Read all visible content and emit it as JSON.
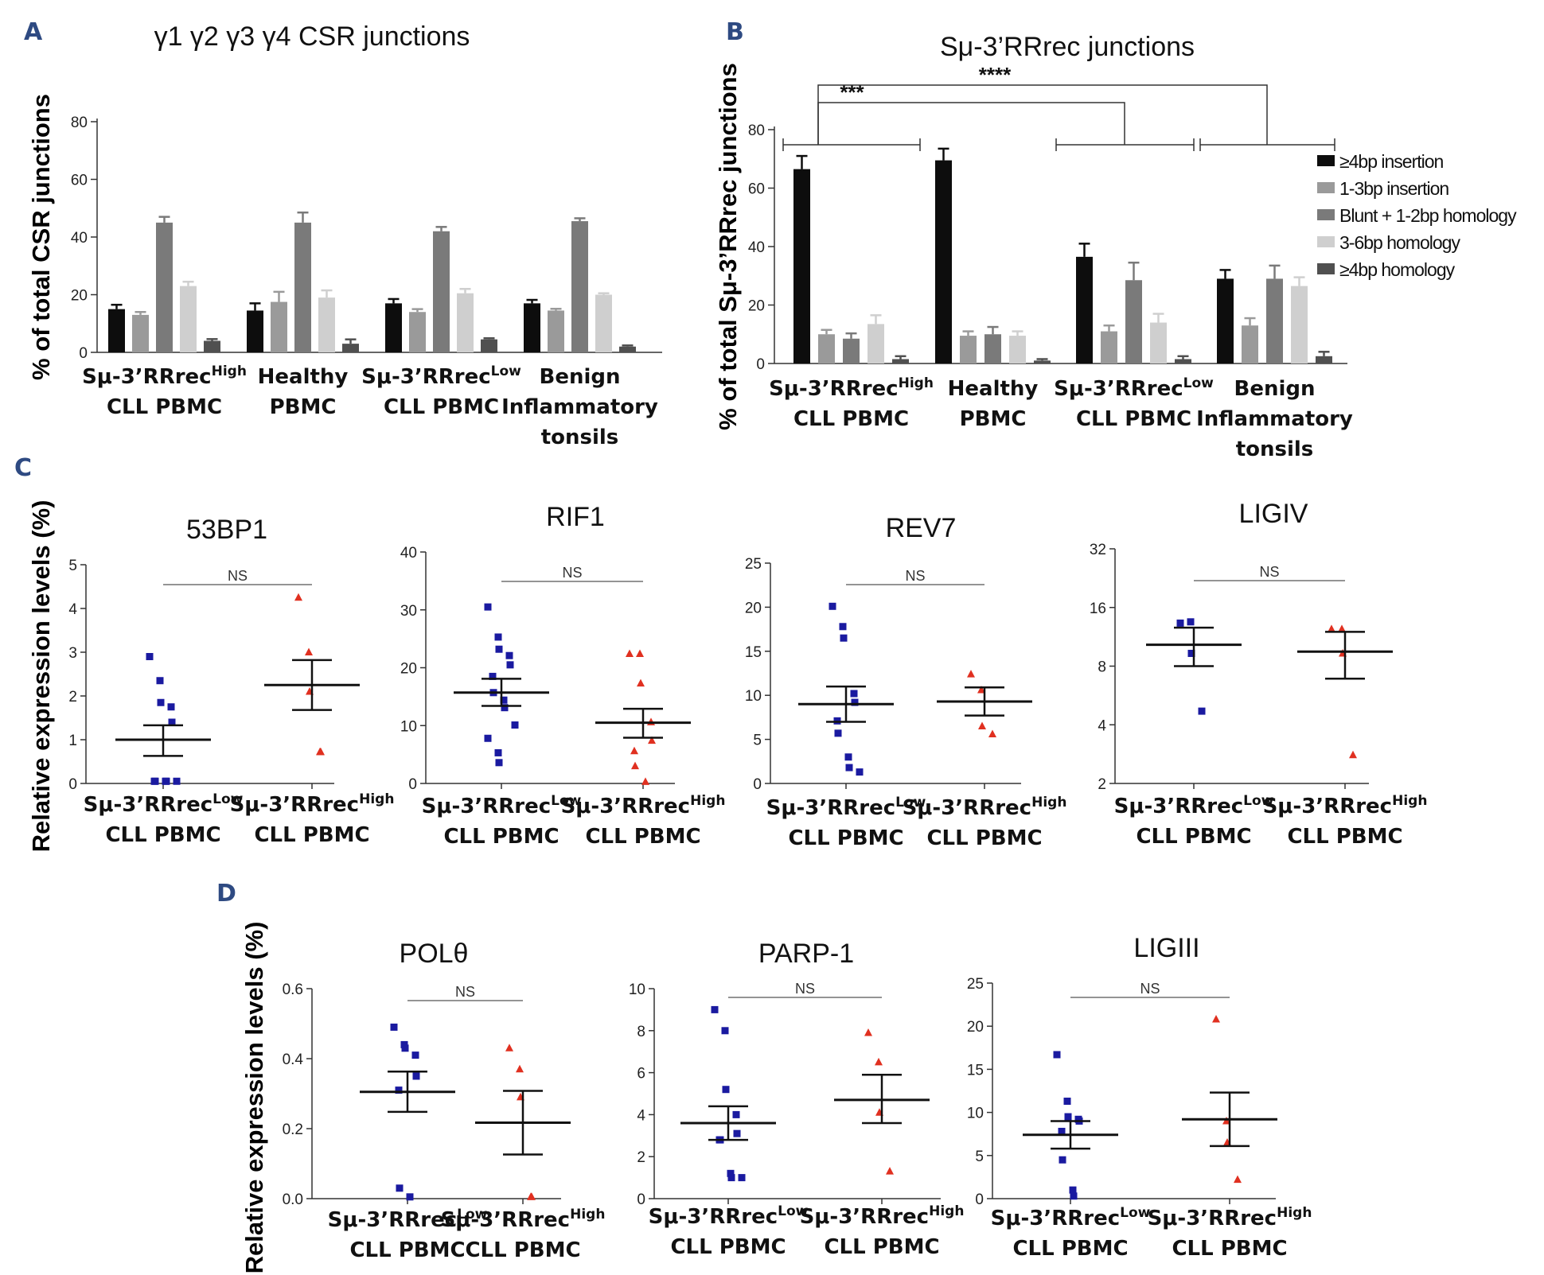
{
  "colors": {
    "series": [
      "#0d0d0d",
      "#9a9a9a",
      "#7a7a7a",
      "#cfcfcf",
      "#505050"
    ],
    "low_points": "#1a1aa0",
    "high_points": "#e03020"
  },
  "panel_labels": [
    "A",
    "B",
    "C",
    "D"
  ],
  "chart_data": [
    {
      "id": "A",
      "type": "bar",
      "title": "γ1 γ2 γ3 γ4 CSR junctions",
      "ylabel": "% of total CSR junctions",
      "ylim": [
        0,
        80
      ],
      "yticks": [
        0,
        20,
        40,
        60,
        80
      ],
      "tick_labels": [
        "0",
        "20",
        "40",
        "60",
        "80"
      ],
      "category_labels": [
        {
          "l1": "Sμ-3’RRrec",
          "sup": "High",
          "l2": "CLL PBMC",
          "l3": ""
        },
        {
          "l1": "Healthy",
          "sup": "",
          "l2": "PBMC",
          "l3": ""
        },
        {
          "l1": "Sμ-3’RRrec",
          "sup": "Low",
          "l2": "CLL PBMC",
          "l3": ""
        },
        {
          "l1": "Benign",
          "sup": "",
          "l2": "Inflammatory",
          "l3": "tonsils"
        }
      ],
      "series": [
        {
          "name": "≥4bp insertion",
          "values": [
            15,
            14.5,
            17,
            17
          ],
          "errors": [
            1.5,
            2.5,
            1.5,
            1.2
          ]
        },
        {
          "name": "1-3bp insertion",
          "values": [
            13,
            17.5,
            14,
            14.5
          ],
          "errors": [
            1,
            3.5,
            1,
            0.6
          ]
        },
        {
          "name": "Blunt + 1-2bp homology",
          "values": [
            45,
            45,
            42,
            45.5
          ],
          "errors": [
            2,
            3.5,
            1.5,
            1
          ]
        },
        {
          "name": "3-6bp homology",
          "values": [
            23,
            19,
            20.5,
            20
          ],
          "errors": [
            1.5,
            2.5,
            1.5,
            0.5
          ]
        },
        {
          "name": "≥4bp homology",
          "values": [
            4,
            3,
            4.5,
            2
          ],
          "errors": [
            0.6,
            1.5,
            0.4,
            0.4
          ]
        }
      ]
    },
    {
      "id": "B",
      "type": "bar",
      "title": "Sμ-3’RRrec junctions",
      "ylabel": "% of total Sμ-3’RRrec junctions",
      "ylim": [
        0,
        80
      ],
      "yticks": [
        0,
        20,
        40,
        60,
        80
      ],
      "tick_labels": [
        "0",
        "20",
        "40",
        "60",
        "80"
      ],
      "category_labels": [
        {
          "l1": "Sμ-3’RRrec",
          "sup": "High",
          "l2": "CLL PBMC",
          "l3": ""
        },
        {
          "l1": "Healthy",
          "sup": "",
          "l2": "PBMC",
          "l3": ""
        },
        {
          "l1": "Sμ-3’RRrec",
          "sup": "Low",
          "l2": "CLL PBMC",
          "l3": ""
        },
        {
          "l1": "Benign",
          "sup": "",
          "l2": "Inflammatory",
          "l3": "tonsils"
        }
      ],
      "series": [
        {
          "name": "≥4bp insertion",
          "values": [
            66.5,
            69.5,
            36.5,
            29
          ],
          "errors": [
            4.5,
            4,
            4.5,
            3
          ]
        },
        {
          "name": "1-3bp insertion",
          "values": [
            10,
            9.5,
            11,
            13
          ],
          "errors": [
            1.5,
            1.5,
            2,
            2.5
          ]
        },
        {
          "name": "Blunt + 1-2bp homology",
          "values": [
            8.5,
            10,
            28.5,
            29
          ],
          "errors": [
            1.8,
            2.5,
            6,
            4.5
          ]
        },
        {
          "name": "3-6bp homology",
          "values": [
            13.5,
            9.5,
            14,
            26.5
          ],
          "errors": [
            3,
            1.5,
            3,
            3
          ]
        },
        {
          "name": "≥4bp homology",
          "values": [
            1.5,
            1,
            1.5,
            2.5
          ],
          "errors": [
            1,
            0.5,
            1,
            1.5
          ]
        }
      ],
      "significance": [
        {
          "label": "***",
          "from": 0,
          "to": 2
        },
        {
          "label": "****",
          "from": 0,
          "to": 3
        }
      ]
    },
    {
      "id": "C-53BP1",
      "type": "scatter",
      "title": "53BP1",
      "ylim": [
        0,
        5
      ],
      "yticks": [
        0,
        1,
        2,
        3,
        4,
        5
      ],
      "tick_labels": [
        "0",
        "1",
        "2",
        "3",
        "4",
        "5"
      ],
      "scale": "linear",
      "significance_label": "NS",
      "groups": [
        {
          "label": "Sμ-3’RRrec",
          "sup": "Low",
          "label2": "CLL PBMC",
          "points": [
            2.9,
            2.35,
            1.85,
            1.75,
            1.4,
            0.05,
            0.05,
            0.05,
            0.05,
            0.05
          ],
          "mean": 1.0,
          "sem_low": 0.63,
          "sem_high": 1.33
        },
        {
          "label": "Sμ-3’RRrec",
          "sup": "High",
          "label2": "CLL PBMC",
          "points": [
            4.25,
            3.0,
            2.1,
            0.72,
            0.72
          ],
          "mean": 2.25,
          "sem_low": 1.68,
          "sem_high": 2.82
        }
      ]
    },
    {
      "id": "C-RIF1",
      "type": "scatter",
      "title": "RIF1",
      "ylim": [
        0,
        40
      ],
      "yticks": [
        0,
        10,
        20,
        30,
        40
      ],
      "tick_labels": [
        "0",
        "10",
        "20",
        "30",
        "40"
      ],
      "scale": "linear",
      "significance_label": "NS",
      "groups": [
        {
          "label": "Sμ-3’RRrec",
          "sup": "Low",
          "label2": "CLL PBMC",
          "points": [
            30.5,
            25.3,
            23.2,
            22.1,
            20.5,
            18.5,
            15.7,
            14.4,
            13.1,
            10.1,
            7.8,
            5.3,
            3.6
          ],
          "mean": 15.7,
          "sem_low": 13.4,
          "sem_high": 18.1
        },
        {
          "label": "Sμ-3’RRrec",
          "sup": "High",
          "label2": "CLL PBMC",
          "points": [
            22.4,
            22.4,
            17.3,
            10.6,
            7.4,
            5.6,
            3.0,
            0.3
          ],
          "mean": 10.5,
          "sem_low": 7.9,
          "sem_high": 12.9
        }
      ]
    },
    {
      "id": "C-REV7",
      "type": "scatter",
      "title": "REV7",
      "ylim": [
        0,
        25
      ],
      "yticks": [
        0,
        5,
        10,
        15,
        20,
        25
      ],
      "tick_labels": [
        "0",
        "5",
        "10",
        "15",
        "20",
        "25"
      ],
      "scale": "linear",
      "significance_label": "NS",
      "groups": [
        {
          "label": "Sμ-3’RRrec",
          "sup": "Low",
          "label2": "CLL PBMC",
          "points": [
            20.1,
            17.8,
            16.5,
            10.2,
            9.2,
            7.1,
            5.7,
            3.0,
            1.8,
            1.3
          ],
          "mean": 9.0,
          "sem_low": 7.0,
          "sem_high": 11.0
        },
        {
          "label": "Sμ-3’RRrec",
          "sup": "High",
          "label2": "CLL PBMC",
          "points": [
            12.4,
            10.6,
            6.5,
            5.6
          ],
          "mean": 9.3,
          "sem_low": 7.7,
          "sem_high": 10.9
        }
      ]
    },
    {
      "id": "C-LIGIV",
      "type": "scatter",
      "title": "LIGIV",
      "ylim": [
        2,
        32
      ],
      "yticks": [
        2,
        4,
        8,
        16,
        32
      ],
      "tick_labels": [
        "2",
        "4",
        "8",
        "16",
        "32"
      ],
      "scale": "log2",
      "significance_label": "NS",
      "groups": [
        {
          "label": "Sμ-3’RRrec",
          "sup": "Low",
          "label2": "CLL PBMC",
          "points": [
            13.3,
            13.5,
            9.3,
            4.7
          ],
          "mean": 10.3,
          "sem_low": 8.0,
          "sem_high": 12.6
        },
        {
          "label": "Sμ-3’RRrec",
          "sup": "High",
          "label2": "CLL PBMC",
          "points": [
            12.4,
            12.4,
            9.3,
            2.8
          ],
          "mean": 9.5,
          "sem_low": 6.9,
          "sem_high": 12.0
        }
      ]
    },
    {
      "id": "D-POLtheta",
      "type": "scatter",
      "title": "POLθ",
      "ylim": [
        0,
        0.6
      ],
      "yticks": [
        0,
        0.2,
        0.4,
        0.6
      ],
      "tick_labels": [
        "0.0",
        "0.2",
        "0.4",
        "0.6"
      ],
      "scale": "linear",
      "significance_label": "NS",
      "groups": [
        {
          "label": "Sμ-3’RRrec",
          "sup": "Low",
          "label2": "CLL PBMC",
          "points": [
            0.49,
            0.44,
            0.43,
            0.41,
            0.35,
            0.31,
            0.03,
            0.005
          ],
          "mean": 0.305,
          "sem_low": 0.248,
          "sem_high": 0.363
        },
        {
          "label": "Sμ-3’RRrec",
          "sup": "High",
          "label2": "CLL PBMC",
          "points": [
            0.43,
            0.37,
            0.29,
            0.005,
            0.005
          ],
          "mean": 0.217,
          "sem_low": 0.126,
          "sem_high": 0.308
        }
      ]
    },
    {
      "id": "D-PARP1",
      "type": "scatter",
      "title": "PARP-1",
      "ylim": [
        0,
        10
      ],
      "yticks": [
        0,
        2,
        4,
        6,
        8,
        10
      ],
      "tick_labels": [
        "0",
        "2",
        "4",
        "6",
        "8",
        "10"
      ],
      "scale": "linear",
      "significance_label": "NS",
      "groups": [
        {
          "label": "Sμ-3’RRrec",
          "sup": "Low",
          "label2": "CLL PBMC",
          "points": [
            9.0,
            8.0,
            5.2,
            4.0,
            3.1,
            2.8,
            2.8,
            1.2,
            1.0,
            1.0
          ],
          "mean": 3.6,
          "sem_low": 2.8,
          "sem_high": 4.4
        },
        {
          "label": "Sμ-3’RRrec",
          "sup": "High",
          "label2": "CLL PBMC",
          "points": [
            7.9,
            6.5,
            4.1,
            1.3
          ],
          "mean": 4.7,
          "sem_low": 3.6,
          "sem_high": 5.9
        }
      ]
    },
    {
      "id": "D-LIGIII",
      "type": "scatter",
      "title": "LIGIII",
      "ylim": [
        0,
        25
      ],
      "yticks": [
        0,
        5,
        10,
        15,
        20,
        25
      ],
      "tick_labels": [
        "0",
        "5",
        "10",
        "15",
        "20",
        "25"
      ],
      "scale": "linear",
      "significance_label": "NS",
      "groups": [
        {
          "label": "Sμ-3’RRrec",
          "sup": "Low",
          "label2": "CLL PBMC",
          "points": [
            16.7,
            11.3,
            9.5,
            9.2,
            9.0,
            7.8,
            4.5,
            1.0,
            0.3
          ],
          "mean": 7.4,
          "sem_low": 5.8,
          "sem_high": 9.0
        },
        {
          "label": "Sμ-3’RRrec",
          "sup": "High",
          "label2": "CLL PBMC",
          "points": [
            20.8,
            9.0,
            6.5,
            2.2
          ],
          "mean": 9.2,
          "sem_low": 6.1,
          "sem_high": 12.3
        }
      ]
    }
  ],
  "shared_ylabel": "Relative expression levels (%)"
}
